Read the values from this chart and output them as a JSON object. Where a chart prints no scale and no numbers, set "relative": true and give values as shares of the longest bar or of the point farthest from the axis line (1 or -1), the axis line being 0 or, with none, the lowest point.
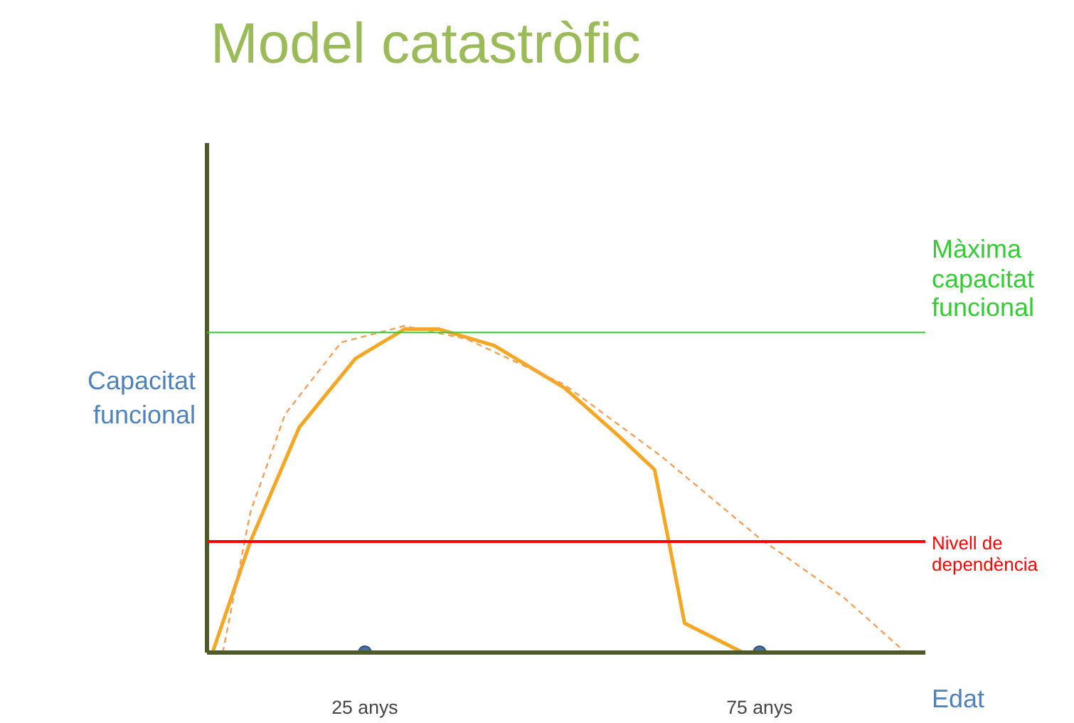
{
  "chart_data": {
    "type": "line",
    "title": "Model catastròfic",
    "xlabel": "Edat",
    "ylabel": "Capacitat\nfuncional",
    "relative": true,
    "xlim": [
      5,
      96
    ],
    "xticks": [
      {
        "value": 25,
        "label": "25 anys"
      },
      {
        "value": 75,
        "label": "75 anys"
      }
    ],
    "series": [
      {
        "color": "#f5a623",
        "line_style": "solid",
        "x": [
          5.7,
          10.5,
          16.7,
          23.8,
          30,
          34.4,
          41.4,
          50.3,
          57.3,
          61.7,
          63.5,
          65.5,
          72.9
        ],
        "values": [
          0,
          0.34,
          0.69,
          0.9,
          0.99,
          0.99,
          0.94,
          0.81,
          0.66,
          0.56,
          0.34,
          0.09,
          0
        ]
      },
      {
        "color": "#f5a05a",
        "line_style": "dashed",
        "x": [
          7,
          10.5,
          14.9,
          22,
          30,
          37.9,
          50.3,
          62.6,
          75,
          85.6,
          93.5
        ],
        "values": [
          0,
          0.43,
          0.73,
          0.95,
          1.0,
          0.96,
          0.82,
          0.6,
          0.35,
          0.17,
          0
        ]
      },
      {
        "type": "scatter",
        "color": "#4a6fa5",
        "marker": "circle",
        "x": [
          25,
          75
        ],
        "values": [
          0,
          0
        ]
      }
    ],
    "ref_lines": [
      {
        "axis": "y",
        "value": 0.98,
        "label": "Màxima\ncapacitat\nfuncional",
        "color": "#33cc33"
      },
      {
        "axis": "y",
        "value": 0.34,
        "label": "Nivell de\ndependència",
        "color": "#ff0000"
      }
    ]
  }
}
